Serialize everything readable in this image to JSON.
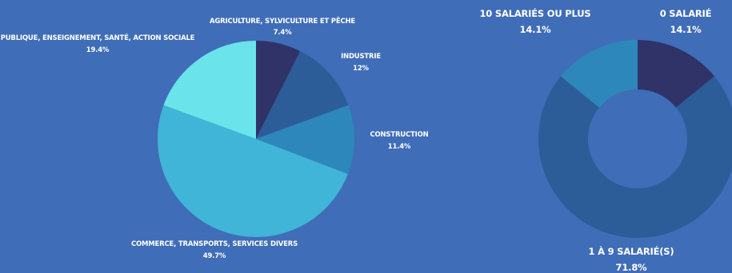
{
  "colors": {
    "background": "#3f6db8",
    "agriculture": "#2f3368",
    "industrie": "#2d5d98",
    "construction": "#2e87ba",
    "commerce": "#40b5d7",
    "publique": "#6ae3ea",
    "zero": "#2f3368",
    "one_to_nine": "#2d5d98",
    "ten_plus": "#2e87ba"
  },
  "chart_data": [
    {
      "type": "pie",
      "categories": [
        "AGRICULTURE, SYLVICULTURE ET PÊCHE",
        "INDUSTRIE",
        "CONSTRUCTION",
        "COMMERCE, TRANSPORTS, SERVICES DIVERS",
        "PUBLIQUE, ENSEIGNEMENT, SANTÉ, ACTION SOCIALE"
      ],
      "values": [
        7.4,
        12,
        11.4,
        49.7,
        19.4
      ],
      "value_labels": [
        "7.4%",
        "12%",
        "11.4%",
        "49.7%",
        "19.4%"
      ],
      "start": "top",
      "direction": "clockwise"
    },
    {
      "type": "donut",
      "categories": [
        "0 SALARIÉ",
        "1 À 9 SALARIÉ(S)",
        "10 SALARIÉS OU PLUS"
      ],
      "values": [
        14.1,
        71.8,
        14.1
      ],
      "value_labels": [
        "14.1%",
        "71.8%",
        "14.1%"
      ],
      "start": "top",
      "direction": "clockwise"
    }
  ]
}
